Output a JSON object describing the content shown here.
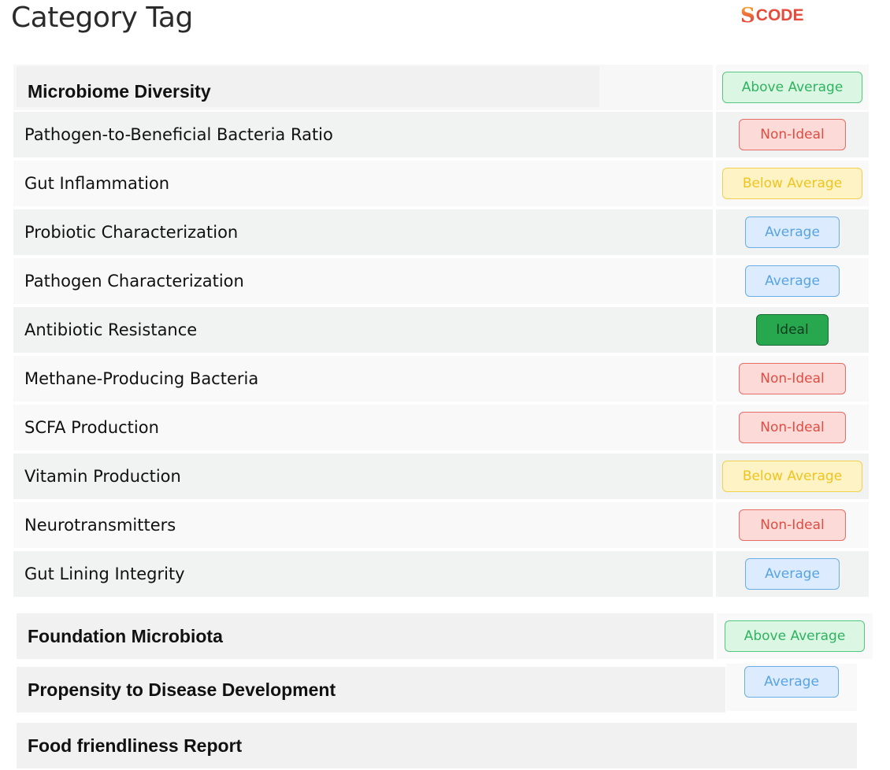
{
  "page": {
    "title": "Category Tag"
  },
  "logo": {
    "mark": "S",
    "text": "CODE"
  },
  "sections": {
    "microbiome": {
      "label": "Microbiome Diversity",
      "status": "Above Average"
    },
    "foundation": {
      "label": "Foundation Microbiota",
      "status": "Above Average"
    },
    "propensity": {
      "label": "Propensity to Disease Development",
      "status": "Average"
    },
    "food": {
      "label": "Food friendliness Report"
    }
  },
  "rows": [
    {
      "label": "Pathogen-to-Beneficial Bacteria Ratio",
      "status": "Non-Ideal"
    },
    {
      "label": "Gut Inflammation",
      "status": "Below Average"
    },
    {
      "label": "Probiotic Characterization",
      "status": "Average"
    },
    {
      "label": "Pathogen Characterization",
      "status": "Average"
    },
    {
      "label": "Antibiotic Resistance",
      "status": "Ideal"
    },
    {
      "label": "Methane-Producing Bacteria",
      "status": "Non-Ideal"
    },
    {
      "label": "SCFA Production",
      "status": "Non-Ideal"
    },
    {
      "label": "Vitamin Production",
      "status": "Below Average"
    },
    {
      "label": "Neurotransmitters",
      "status": "Non-Ideal"
    },
    {
      "label": "Gut Lining Integrity",
      "status": "Average"
    }
  ],
  "status_colors": {
    "Above Average": "#2eb35f",
    "Non-Ideal": "#e04d43",
    "Below Average": "#f0c41f",
    "Average": "#58a4e3",
    "Ideal": "#27a84f"
  }
}
